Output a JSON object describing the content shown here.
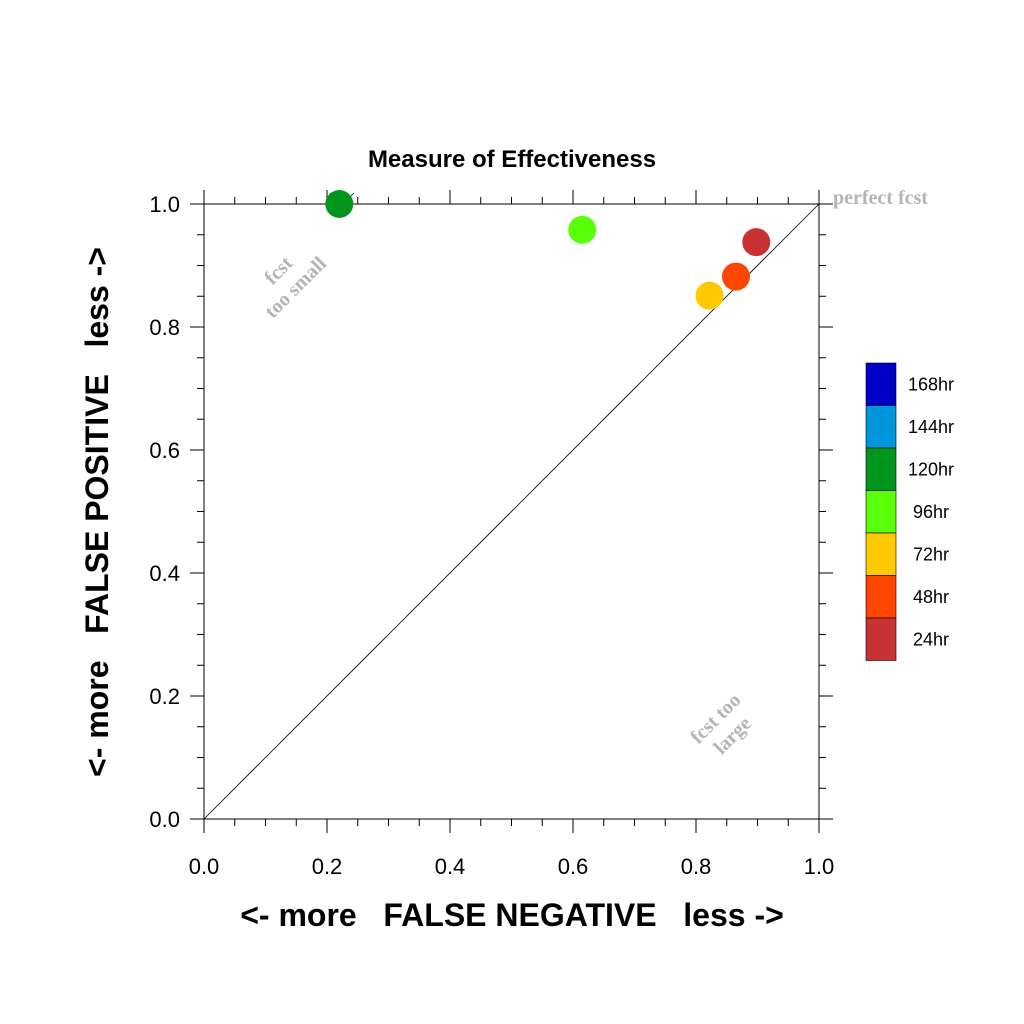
{
  "chart_data": {
    "type": "scatter",
    "title": "Measure of Effectiveness",
    "xlabel": "<- more   FALSE NEGATIVE   less ->",
    "ylabel": "<- more   FALSE POSITIVE   less ->",
    "xlim": [
      0.0,
      1.0
    ],
    "ylim": [
      0.0,
      1.0
    ],
    "xticks": [
      "0.0",
      "0.2",
      "0.4",
      "0.6",
      "0.8",
      "1.0"
    ],
    "yticks": [
      "0.0",
      "0.2",
      "0.4",
      "0.6",
      "0.8",
      "1.0"
    ],
    "grid": false,
    "diagonal_reference_line": true,
    "annotations": {
      "perfect": "perfect fcst",
      "too_small_line1": "fcst",
      "too_small_line2": "too small",
      "too_large_line1": "fcst too",
      "too_large_line2": "large"
    },
    "legend": {
      "placement": "right",
      "entries": [
        {
          "label": "168hr",
          "color": "#0000c8"
        },
        {
          "label": "144hr",
          "color": "#0096dc"
        },
        {
          "label": "120hr",
          "color": "#00961e"
        },
        {
          "label": "96hr",
          "color": "#5aff0a"
        },
        {
          "label": "72hr",
          "color": "#ffc800"
        },
        {
          "label": "48hr",
          "color": "#ff4600"
        },
        {
          "label": "24hr",
          "color": "#c83232"
        }
      ]
    },
    "points": [
      {
        "label": "120hr",
        "x": 0.22,
        "y": 1.0,
        "color": "#00961e"
      },
      {
        "label": "96hr",
        "x": 0.615,
        "y": 0.958,
        "color": "#5aff0a"
      },
      {
        "label": "72hr",
        "x": 0.822,
        "y": 0.851,
        "color": "#ffc800"
      },
      {
        "label": "48hr",
        "x": 0.865,
        "y": 0.882,
        "color": "#ff4600"
      },
      {
        "label": "24hr",
        "x": 0.898,
        "y": 0.938,
        "color": "#c83232"
      }
    ]
  }
}
